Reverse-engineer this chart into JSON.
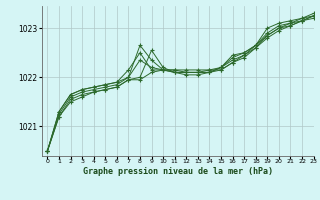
{
  "title": "Graphe pression niveau de la mer (hPa)",
  "background_color": "#d5f5f5",
  "grid_color": "#b0c8c8",
  "line_color": "#2d6a2d",
  "marker_color": "#2d6a2d",
  "xlim": [
    -0.5,
    23
  ],
  "ylim": [
    1020.4,
    1023.45
  ],
  "yticks": [
    1021,
    1022,
    1023
  ],
  "xticks": [
    0,
    1,
    2,
    3,
    4,
    5,
    6,
    7,
    8,
    9,
    10,
    11,
    12,
    13,
    14,
    15,
    16,
    17,
    18,
    19,
    20,
    21,
    22,
    23
  ],
  "lines": [
    [
      1020.5,
      1021.3,
      1021.65,
      1021.75,
      1021.8,
      1021.85,
      1021.9,
      1022.15,
      1022.5,
      1022.15,
      1022.15,
      1022.15,
      1022.15,
      1022.15,
      1022.15,
      1022.2,
      1022.45,
      1022.5,
      1022.65,
      1023.0,
      1023.1,
      1023.15,
      1023.2,
      1023.3
    ],
    [
      1020.5,
      1021.3,
      1021.65,
      1021.75,
      1021.8,
      1021.85,
      1021.9,
      1022.0,
      1022.35,
      1022.2,
      1022.15,
      1022.1,
      1022.1,
      1022.1,
      1022.1,
      1022.2,
      1022.4,
      1022.5,
      1022.65,
      1022.9,
      1023.05,
      1023.1,
      1023.2,
      1023.25
    ],
    [
      1020.5,
      1021.25,
      1021.6,
      1021.7,
      1021.75,
      1021.8,
      1021.85,
      1022.0,
      1022.65,
      1022.35,
      1022.15,
      1022.15,
      1022.1,
      1022.1,
      1022.1,
      1022.2,
      1022.35,
      1022.45,
      1022.65,
      1022.85,
      1023.0,
      1023.1,
      1023.15,
      1023.2
    ],
    [
      1020.5,
      1021.2,
      1021.55,
      1021.65,
      1021.7,
      1021.75,
      1021.8,
      1021.95,
      1022.0,
      1022.55,
      1022.2,
      1022.1,
      1022.1,
      1022.1,
      1022.15,
      1022.15,
      1022.3,
      1022.45,
      1022.6,
      1022.85,
      1023.0,
      1023.05,
      1023.15,
      1023.25
    ],
    [
      1020.5,
      1021.2,
      1021.5,
      1021.6,
      1021.7,
      1021.75,
      1021.8,
      1021.95,
      1021.95,
      1022.1,
      1022.15,
      1022.1,
      1022.05,
      1022.05,
      1022.1,
      1022.15,
      1022.3,
      1022.4,
      1022.6,
      1022.8,
      1022.95,
      1023.05,
      1023.15,
      1023.25
    ]
  ]
}
